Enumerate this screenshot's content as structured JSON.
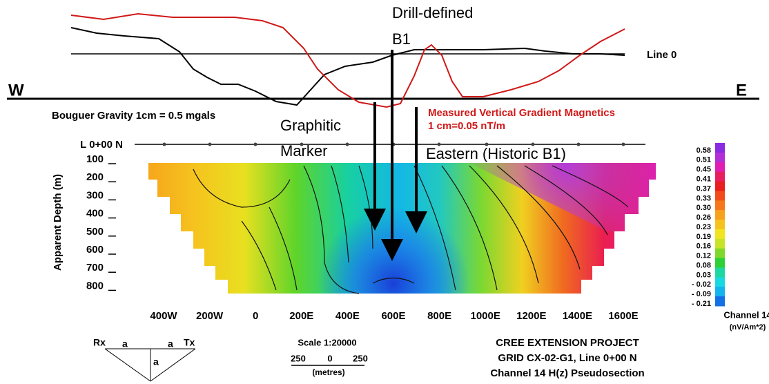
{
  "profile": {
    "drill": "Drill-defined",
    "b1": "B1",
    "line": "Line 0",
    "west": "W",
    "east": "E",
    "gravity": "Bouguer Gravity  1cm = 0.5 mgals",
    "graphitic": "Graphitic",
    "marker": "Marker",
    "magnetics": "Measured Vertical Gradient Magnetics",
    "magnetics_scale": "1 cm=0.05 nT/m",
    "eastern": "Eastern (Historic B1)",
    "station_line": "L 0+00 N"
  },
  "section": {
    "y_title": "Apparent Depth (m)",
    "y_ticks": [
      "100",
      "200",
      "300",
      "400",
      "500",
      "600",
      "700",
      "800"
    ],
    "x_ticks": [
      "400W",
      "200W",
      "0",
      "200E",
      "400E",
      "600E",
      "800E",
      "1000E",
      "1200E",
      "1400E",
      "1600E"
    ]
  },
  "colorbar": {
    "labels": [
      "0.58",
      "0.51",
      "0.45",
      "0.41",
      "0.37",
      "0.33",
      "0.30",
      "0.26",
      "0.23",
      "0.19",
      "0.16",
      "0.12",
      "0.08",
      "0.03",
      "- 0.02",
      "- 0.09",
      "- 0.21"
    ],
    "title": "Channel 14",
    "unit": "(nV/Am*2)"
  },
  "array": {
    "rx": "Rx",
    "tx": "Tx",
    "a": "a"
  },
  "scale": {
    "title": "Scale 1:20000",
    "labels": [
      "250",
      "0",
      "250"
    ],
    "unit": "(metres)"
  },
  "project": {
    "name": "CREE EXTENSION PROJECT",
    "grid": "GRID CX-02-G1, Line 0+00 N",
    "channel": "Channel 14 H(z) Pseudosection"
  }
}
